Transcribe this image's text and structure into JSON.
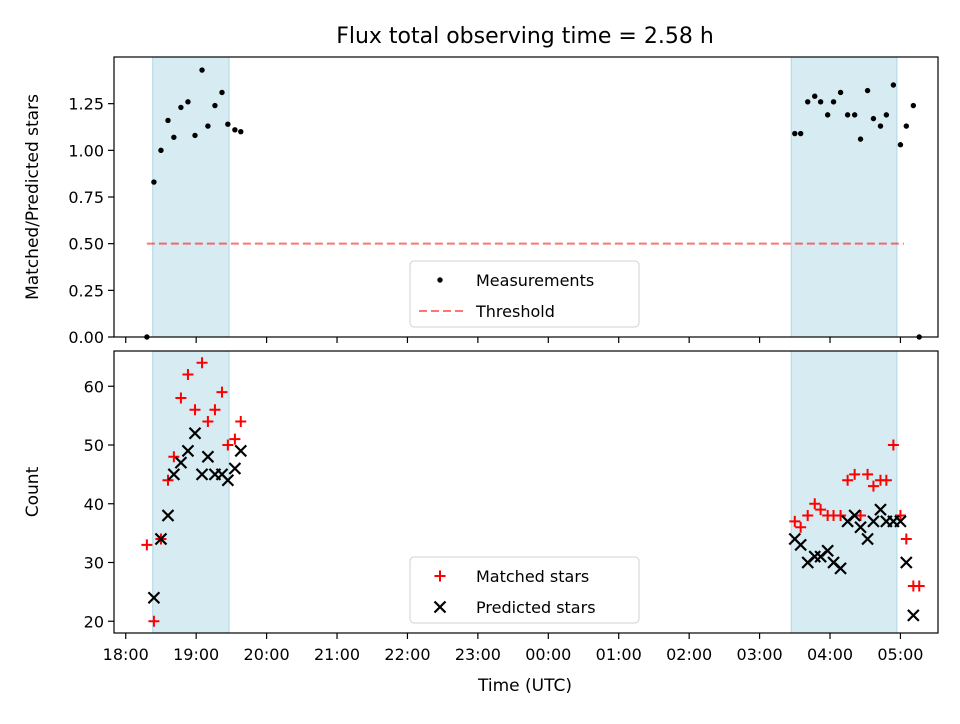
{
  "title": "Flux total observing time = 2.58 h",
  "colors": {
    "measurement": "#000000",
    "threshold": "#ff0000",
    "matched": "#ff0000",
    "predicted": "#000000",
    "observing_window": "#add8e6"
  },
  "chart_data": [
    {
      "type": "scatter",
      "title": "Flux total observing time = 2.58 h",
      "xlabel": "",
      "ylabel": "Matched/Predicted stars",
      "xlim": [
        "17:50",
        "05:32"
      ],
      "ylim": [
        0,
        1.5
      ],
      "yticks": [
        0.0,
        0.25,
        0.5,
        0.75,
        1.0,
        1.25
      ],
      "ytick_labels": [
        "0.00",
        "0.25",
        "0.50",
        "0.75",
        "1.00",
        "1.25"
      ],
      "grid": false,
      "legend_position": "bottom-center",
      "shaded_regions": [
        {
          "start": "18:23",
          "end": "19:28"
        },
        {
          "start": "03:27",
          "end": "04:57"
        }
      ],
      "threshold": {
        "name": "Threshold",
        "y": 0.5,
        "x_start": "18:18",
        "x_end": "05:03"
      },
      "series": [
        {
          "name": "Measurements",
          "marker": "dot",
          "points": [
            {
              "x": "18:18",
              "y": 0.0
            },
            {
              "x": "18:24",
              "y": 0.83
            },
            {
              "x": "18:30",
              "y": 1.0
            },
            {
              "x": "18:36",
              "y": 1.16
            },
            {
              "x": "18:41",
              "y": 1.07
            },
            {
              "x": "18:47",
              "y": 1.23
            },
            {
              "x": "18:53",
              "y": 1.26
            },
            {
              "x": "18:59",
              "y": 1.08
            },
            {
              "x": "19:05",
              "y": 1.43
            },
            {
              "x": "19:10",
              "y": 1.13
            },
            {
              "x": "19:16",
              "y": 1.24
            },
            {
              "x": "19:22",
              "y": 1.31
            },
            {
              "x": "19:27",
              "y": 1.14
            },
            {
              "x": "19:33",
              "y": 1.11
            },
            {
              "x": "19:38",
              "y": 1.1
            },
            {
              "x": "03:30",
              "y": 1.09
            },
            {
              "x": "03:35",
              "y": 1.09
            },
            {
              "x": "03:41",
              "y": 1.26
            },
            {
              "x": "03:47",
              "y": 1.29
            },
            {
              "x": "03:52",
              "y": 1.26
            },
            {
              "x": "03:58",
              "y": 1.19
            },
            {
              "x": "04:03",
              "y": 1.26
            },
            {
              "x": "04:09",
              "y": 1.31
            },
            {
              "x": "04:15",
              "y": 1.19
            },
            {
              "x": "04:21",
              "y": 1.19
            },
            {
              "x": "04:26",
              "y": 1.06
            },
            {
              "x": "04:32",
              "y": 1.32
            },
            {
              "x": "04:37",
              "y": 1.17
            },
            {
              "x": "04:43",
              "y": 1.13
            },
            {
              "x": "04:48",
              "y": 1.19
            },
            {
              "x": "04:54",
              "y": 1.35
            },
            {
              "x": "05:00",
              "y": 1.03
            },
            {
              "x": "05:05",
              "y": 1.13
            },
            {
              "x": "05:11",
              "y": 1.24
            },
            {
              "x": "05:16",
              "y": 0.0
            }
          ]
        }
      ],
      "legend": [
        "Measurements",
        "Threshold"
      ]
    },
    {
      "type": "scatter",
      "title": "",
      "xlabel": "Time (UTC)",
      "ylabel": "Count",
      "xlim": [
        "17:50",
        "05:32"
      ],
      "ylim": [
        18,
        66
      ],
      "yticks": [
        20,
        30,
        40,
        50,
        60
      ],
      "ytick_labels": [
        "20",
        "30",
        "40",
        "50",
        "60"
      ],
      "xtick_labels": [
        "18:00",
        "19:00",
        "20:00",
        "21:00",
        "22:00",
        "23:00",
        "00:00",
        "01:00",
        "02:00",
        "03:00",
        "04:00",
        "05:00"
      ],
      "grid": false,
      "legend_position": "bottom-center",
      "shaded_regions": [
        {
          "start": "18:23",
          "end": "19:28"
        },
        {
          "start": "03:27",
          "end": "04:57"
        }
      ],
      "series": [
        {
          "name": "Matched stars",
          "marker": "plus",
          "points": [
            {
              "x": "18:18",
              "y": 33
            },
            {
              "x": "18:24",
              "y": 20
            },
            {
              "x": "18:30",
              "y": 34
            },
            {
              "x": "18:36",
              "y": 44
            },
            {
              "x": "18:41",
              "y": 48
            },
            {
              "x": "18:47",
              "y": 58
            },
            {
              "x": "18:53",
              "y": 62
            },
            {
              "x": "18:59",
              "y": 56
            },
            {
              "x": "19:05",
              "y": 64
            },
            {
              "x": "19:10",
              "y": 54
            },
            {
              "x": "19:16",
              "y": 56
            },
            {
              "x": "19:22",
              "y": 59
            },
            {
              "x": "19:27",
              "y": 50
            },
            {
              "x": "19:33",
              "y": 51
            },
            {
              "x": "19:38",
              "y": 54
            },
            {
              "x": "03:30",
              "y": 37
            },
            {
              "x": "03:35",
              "y": 36
            },
            {
              "x": "03:41",
              "y": 38
            },
            {
              "x": "03:47",
              "y": 40
            },
            {
              "x": "03:52",
              "y": 39
            },
            {
              "x": "03:58",
              "y": 38
            },
            {
              "x": "04:03",
              "y": 38
            },
            {
              "x": "04:09",
              "y": 38
            },
            {
              "x": "04:15",
              "y": 44
            },
            {
              "x": "04:21",
              "y": 45
            },
            {
              "x": "04:26",
              "y": 38
            },
            {
              "x": "04:32",
              "y": 45
            },
            {
              "x": "04:37",
              "y": 43
            },
            {
              "x": "04:43",
              "y": 44
            },
            {
              "x": "04:48",
              "y": 44
            },
            {
              "x": "04:54",
              "y": 50
            },
            {
              "x": "05:00",
              "y": 38
            },
            {
              "x": "05:05",
              "y": 34
            },
            {
              "x": "05:11",
              "y": 26
            },
            {
              "x": "05:16",
              "y": 26
            }
          ]
        },
        {
          "name": "Predicted stars",
          "marker": "x",
          "points": [
            {
              "x": "18:24",
              "y": 24
            },
            {
              "x": "18:30",
              "y": 34
            },
            {
              "x": "18:36",
              "y": 38
            },
            {
              "x": "18:41",
              "y": 45
            },
            {
              "x": "18:47",
              "y": 47
            },
            {
              "x": "18:53",
              "y": 49
            },
            {
              "x": "18:59",
              "y": 52
            },
            {
              "x": "19:05",
              "y": 45
            },
            {
              "x": "19:10",
              "y": 48
            },
            {
              "x": "19:16",
              "y": 45
            },
            {
              "x": "19:22",
              "y": 45
            },
            {
              "x": "19:27",
              "y": 44
            },
            {
              "x": "19:33",
              "y": 46
            },
            {
              "x": "19:38",
              "y": 49
            },
            {
              "x": "03:30",
              "y": 34
            },
            {
              "x": "03:35",
              "y": 33
            },
            {
              "x": "03:41",
              "y": 30
            },
            {
              "x": "03:47",
              "y": 31
            },
            {
              "x": "03:52",
              "y": 31
            },
            {
              "x": "03:58",
              "y": 32
            },
            {
              "x": "04:03",
              "y": 30
            },
            {
              "x": "04:09",
              "y": 29
            },
            {
              "x": "04:15",
              "y": 37
            },
            {
              "x": "04:21",
              "y": 38
            },
            {
              "x": "04:26",
              "y": 36
            },
            {
              "x": "04:32",
              "y": 34
            },
            {
              "x": "04:37",
              "y": 37
            },
            {
              "x": "04:43",
              "y": 39
            },
            {
              "x": "04:48",
              "y": 37
            },
            {
              "x": "04:54",
              "y": 37
            },
            {
              "x": "05:00",
              "y": 37
            },
            {
              "x": "05:05",
              "y": 30
            },
            {
              "x": "05:11",
              "y": 21
            }
          ]
        }
      ],
      "legend": [
        "Matched stars",
        "Predicted stars"
      ]
    }
  ]
}
